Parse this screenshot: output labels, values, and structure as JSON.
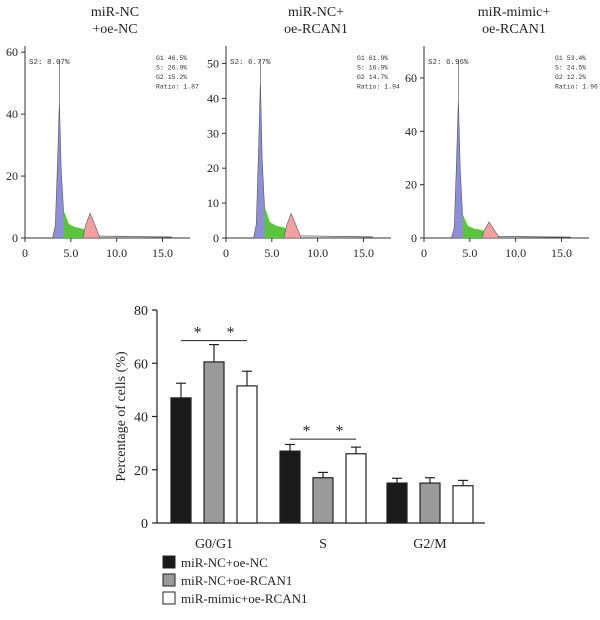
{
  "flow_panels": [
    {
      "title_lines": [
        "miR-NC",
        "+oe-NC"
      ],
      "y_ticks": [
        "0",
        "20",
        "40",
        "60"
      ],
      "y_max": 62,
      "x_ticks": [
        "0",
        "5.0",
        "10.0",
        "15.0"
      ],
      "sub_label": "S2:  8.07%",
      "stats": [
        "G1  46.5%",
        "S:  26.9%",
        "G2  15.2%",
        "Ratio: 1.87"
      ],
      "g1_peak": 44,
      "g2_peak": 8
    },
    {
      "title_lines": [
        "miR-NC+",
        "oe-RCAN1"
      ],
      "y_ticks": [
        "0",
        "10",
        "20",
        "30",
        "40",
        "50"
      ],
      "y_max": 55,
      "x_ticks": [
        "0",
        "5.0",
        "10.0",
        "15.0"
      ],
      "sub_label": "S2:  6.77%",
      "stats": [
        "G1  61.9%",
        "S:  16.9%",
        "G2  14.7%",
        "Ratio: 1.94"
      ],
      "g1_peak": 45,
      "g2_peak": 7
    },
    {
      "title_lines": [
        "miR-mimic+",
        "oe-RCAN1"
      ],
      "y_ticks": [
        "0",
        "20",
        "40",
        "60"
      ],
      "y_max": 72,
      "x_ticks": [
        "0",
        "5.0",
        "10.0",
        "15.0"
      ],
      "sub_label": "S2:  6.96%",
      "stats": [
        "G1  53.4%",
        "S:  24.5%",
        "G2  12.2%",
        "Ratio: 1.96"
      ],
      "g1_peak": 52,
      "g2_peak": 6
    }
  ],
  "colors": {
    "g1_fill": "#8c8fd6",
    "s_fill": "#5ac43e",
    "g2_fill": "#f0a0a0",
    "histogram_line": "#555555",
    "bar_black": "#1a1a1a",
    "bar_gray": "#9a9a9a",
    "bar_white": "#ffffff"
  },
  "chart_data": {
    "type": "bar",
    "ylabel": "Percentage of cells (%)",
    "ylim": [
      0,
      80
    ],
    "yticks": [
      "0",
      "20",
      "40",
      "60",
      "80"
    ],
    "categories": [
      "G0/G1",
      "S",
      "G2/M"
    ],
    "series": [
      {
        "name": "miR-NC+oe-NC",
        "values": [
          47,
          27,
          15
        ],
        "errors": [
          5.5,
          2.5,
          1.8
        ]
      },
      {
        "name": "miR-NC+oe-RCAN1",
        "values": [
          60.5,
          17,
          15
        ],
        "errors": [
          6.5,
          2,
          2
        ]
      },
      {
        "name": "miR-mimic+oe-RCAN1",
        "values": [
          51.5,
          26,
          14
        ],
        "errors": [
          5.5,
          2.5,
          2
        ]
      }
    ],
    "significance": [
      {
        "category": 0,
        "from": 0,
        "to": 1,
        "y": 68.5,
        "label": "*"
      },
      {
        "category": 0,
        "from": 1,
        "to": 2,
        "y": 68.5,
        "label": "*"
      },
      {
        "category": 1,
        "from": 0,
        "to": 1,
        "y": 31.5,
        "label": "*"
      },
      {
        "category": 1,
        "from": 1,
        "to": 2,
        "y": 31.5,
        "label": "*"
      }
    ]
  }
}
